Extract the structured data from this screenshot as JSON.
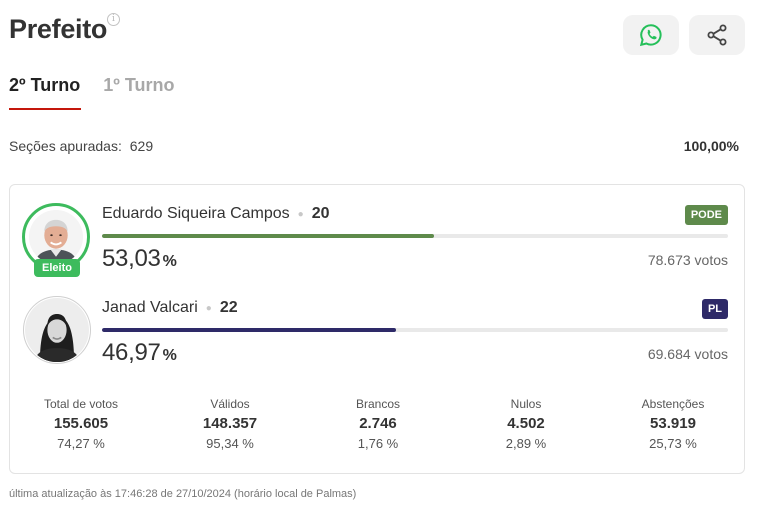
{
  "header": {
    "title": "Prefeito",
    "info_glyph": "i",
    "whatsapp_icon": "whatsapp-icon",
    "share_icon": "share-icon"
  },
  "tabs": [
    {
      "label": "2º Turno",
      "active": true
    },
    {
      "label": "1º Turno",
      "active": false
    }
  ],
  "sections": {
    "label": "Seções apuradas:",
    "count": "629",
    "percent": "100,00%"
  },
  "candidates": [
    {
      "name": "Eduardo Siqueira Campos",
      "number": "20",
      "party": "PODE",
      "party_color": "#5e8a4b",
      "bar_color": "#5e8a4b",
      "share": 0.5303,
      "percent": "53,03",
      "percent_unit": "%",
      "votes": "78.673 votos",
      "elected": true,
      "elected_label": "Eleito"
    },
    {
      "name": "Janad Valcari",
      "number": "22",
      "party": "PL",
      "party_color": "#2e2a68",
      "bar_color": "#2e2a68",
      "share": 0.4697,
      "percent": "46,97",
      "percent_unit": "%",
      "votes": "69.684 votos",
      "elected": false
    }
  ],
  "stats": [
    {
      "label": "Total de votos",
      "value": "155.605",
      "percent": "74,27 %"
    },
    {
      "label": "Válidos",
      "value": "148.357",
      "percent": "95,34 %"
    },
    {
      "label": "Brancos",
      "value": "2.746",
      "percent": "1,76 %"
    },
    {
      "label": "Nulos",
      "value": "4.502",
      "percent": "2,89 %"
    },
    {
      "label": "Abstenções",
      "value": "53.919",
      "percent": "25,73 %"
    }
  ],
  "footer": {
    "updated": "última atualização às 17:46:28 de 27/10/2024 (horário local de Palmas)"
  },
  "colors": {
    "accent_red": "#c4170c",
    "elected_green": "#3dbb5d",
    "whatsapp_green": "#25c05a"
  }
}
